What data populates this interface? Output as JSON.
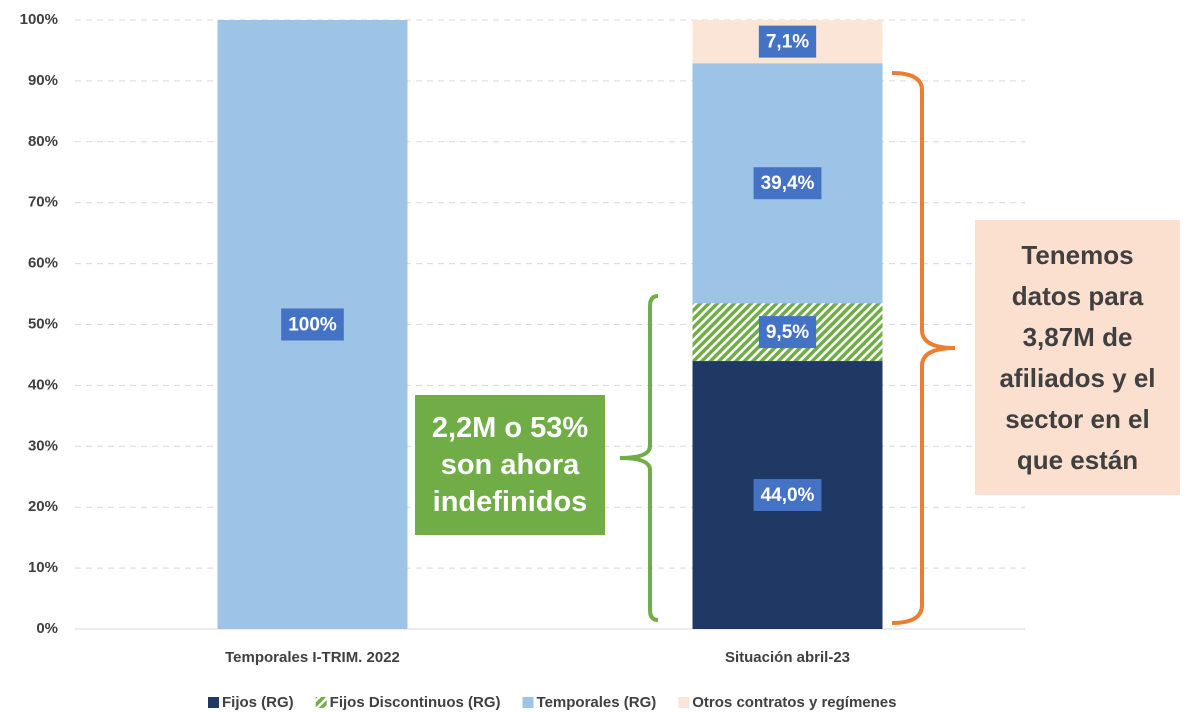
{
  "chart_data": {
    "type": "stacked_bar",
    "categories": [
      "Temporales I-TRIM. 2022",
      "Situación abril-23"
    ],
    "series": [
      {
        "name": "Fijos (RG)",
        "color": "#203864",
        "values": [
          null,
          44.0
        ],
        "value_labels": [
          null,
          "44,0%"
        ]
      },
      {
        "name": "Fijos Discontinuos (RG)",
        "color": "#70ad47",
        "hatch": true,
        "values": [
          null,
          9.5
        ],
        "value_labels": [
          null,
          "9,5%"
        ]
      },
      {
        "name": "Temporales (RG)",
        "color": "#9dc3e6",
        "values": [
          100,
          39.4
        ],
        "value_labels": [
          "100%",
          "39,4%"
        ]
      },
      {
        "name": "Otros contratos y regímenes",
        "color": "#fbe5d6",
        "values": [
          null,
          7.1
        ],
        "value_labels": [
          null,
          "7,1%"
        ]
      }
    ],
    "ylim": [
      0,
      100
    ],
    "yticks": [
      {
        "value": 0,
        "label": "0%"
      },
      {
        "value": 10,
        "label": "10%"
      },
      {
        "value": 20,
        "label": "20%"
      },
      {
        "value": 30,
        "label": "30%"
      },
      {
        "value": 40,
        "label": "40%"
      },
      {
        "value": 50,
        "label": "50%"
      },
      {
        "value": 60,
        "label": "60%"
      },
      {
        "value": 70,
        "label": "70%"
      },
      {
        "value": 80,
        "label": "80%"
      },
      {
        "value": 90,
        "label": "90%"
      },
      {
        "value": 100,
        "label": "100%"
      }
    ],
    "grid": true,
    "legend": "bottom",
    "annotations": [
      {
        "lines": [
          "2,2M o 53%",
          "son ahora",
          "indefinidos"
        ]
      },
      {
        "lines": [
          "Tenemos",
          "datos para",
          "3,87M de",
          "afiliados y el",
          "sector en el",
          "que están"
        ]
      }
    ]
  }
}
